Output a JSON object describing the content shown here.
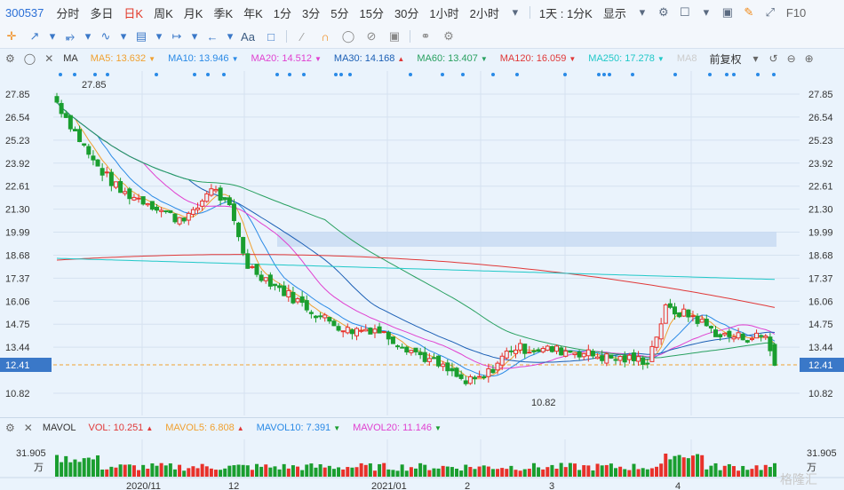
{
  "topbar": {
    "code": "300537",
    "periods": [
      "分时",
      "多日",
      "日K",
      "周K",
      "月K",
      "季K",
      "年K",
      "1分",
      "3分",
      "5分",
      "15分",
      "30分",
      "1小时",
      "2小时"
    ],
    "active_period": "日K",
    "interval": "1天 : 1分K",
    "display": "显示",
    "fio": "F10"
  },
  "toolbar": {
    "text_tool": "Aa"
  },
  "ma_bar": {
    "label": "MA",
    "items": [
      {
        "text": "MA5: 13.632",
        "color": "#f0a030",
        "dir": "down"
      },
      {
        "text": "MA10: 13.946",
        "color": "#2a8ae6",
        "dir": "down"
      },
      {
        "text": "MA20: 14.512",
        "color": "#e040d0",
        "dir": "down"
      },
      {
        "text": "MA30: 14.168",
        "color": "#1b5fb5",
        "dir": "up"
      },
      {
        "text": "MA60: 13.407",
        "color": "#28a060",
        "dir": "down"
      },
      {
        "text": "MA120: 16.059",
        "color": "#e03838",
        "dir": "down"
      },
      {
        "text": "MA250: 17.278",
        "color": "#20c8c8",
        "dir": "down"
      },
      {
        "text": "MA8",
        "color": "#cccccc",
        "dir": ""
      }
    ],
    "adjust": "前复权"
  },
  "price_axis": {
    "ticks": [
      "27.85",
      "26.54",
      "25.23",
      "23.92",
      "22.61",
      "21.30",
      "19.99",
      "18.68",
      "17.37",
      "16.06",
      "14.75",
      "13.44",
      "12.41",
      "10.82"
    ],
    "current": "12.41",
    "high_label": "27.85",
    "low_label": "10.82"
  },
  "x_axis": {
    "labels": [
      "2020/11",
      "12",
      "2021/01",
      "2",
      "3",
      "4"
    ]
  },
  "vol_bar": {
    "label": "MAVOL",
    "items": [
      {
        "text": "VOL: 10.251",
        "color": "#e03838",
        "dir": "up"
      },
      {
        "text": "MAVOL5: 6.808",
        "color": "#f0a030",
        "dir": "up"
      },
      {
        "text": "MAVOL10: 7.391",
        "color": "#2a8ae6",
        "dir": "down"
      },
      {
        "text": "MAVOL20: 11.146",
        "color": "#e040d0",
        "dir": "down"
      }
    ],
    "axis_top": "31.905",
    "axis_unit": "万"
  },
  "watermark": "格隆汇",
  "colors": {
    "up": "#e8312a",
    "down": "#1a9e2f",
    "accent": "#e23a2a",
    "link": "#2a6fd6"
  }
}
